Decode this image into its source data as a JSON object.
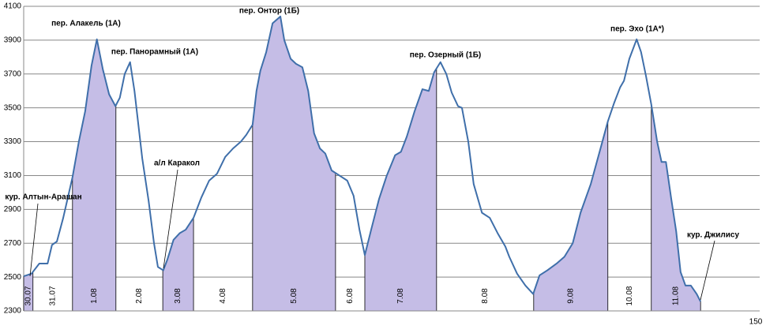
{
  "chart_data": {
    "type": "line",
    "x": [
      0,
      1.6,
      3.2,
      4.9,
      5.8,
      6.8,
      8.1,
      10.0,
      11.3,
      12.6,
      13.9,
      15.0,
      16.2,
      17.5,
      18.8,
      19.7,
      20.7,
      21.8,
      22.7,
      23.5,
      24.3,
      25.6,
      26.7,
      27.5,
      28.6,
      29.4,
      30.7,
      32.0,
      33.2,
      34.8,
      36.4,
      38.0,
      39.6,
      41.3,
      42.9,
      44.5,
      45.6,
      46.9,
      47.7,
      48.5,
      49.7,
      51.0,
      52.6,
      53.4,
      54.7,
      55.8,
      57.1,
      58.3,
      59.5,
      60.7,
      61.8,
      63.1,
      64.7,
      66.3,
      67.6,
      68.8,
      69.9,
      71.2,
      72.8,
      74.4,
      76.1,
      77.3,
      78.5,
      80.1,
      81.7,
      83.0,
      84.1,
      85.4,
      86.6,
      87.7,
      89.0,
      89.8,
      91.1,
      92.2,
      93.9,
      95.5,
      97.1,
      98.7,
      99.5,
      101.1,
      102.8,
      104.4,
      105.7,
      107.3,
      109.2,
      110.8,
      112.5,
      114.1,
      116.2,
      118.1,
      119.7,
      121.0,
      122.2,
      123.0,
      124.1,
      125.6,
      126.5,
      127.5,
      128.6,
      129.8,
      130.7,
      131.6,
      132.7,
      133.7,
      134.6,
      135.6,
      136.7,
      137.9,
      138.7
    ],
    "series": [
      {
        "color": "#3f6faa",
        "fill": "#c5bde6",
        "values": [
          2505,
          2520,
          2580,
          2580,
          2690,
          2710,
          2850,
          3090,
          3300,
          3480,
          3750,
          3905,
          3730,
          3580,
          3510,
          3560,
          3700,
          3770,
          3600,
          3400,
          3200,
          2950,
          2700,
          2560,
          2540,
          2600,
          2720,
          2760,
          2780,
          2850,
          2970,
          3070,
          3110,
          3210,
          3260,
          3300,
          3340,
          3400,
          3600,
          3720,
          3830,
          4000,
          4040,
          3900,
          3790,
          3760,
          3740,
          3600,
          3350,
          3260,
          3230,
          3130,
          3100,
          3070,
          2980,
          2780,
          2630,
          2780,
          2960,
          3100,
          3220,
          3240,
          3330,
          3480,
          3610,
          3600,
          3710,
          3770,
          3700,
          3590,
          3510,
          3500,
          3300,
          3050,
          2880,
          2850,
          2760,
          2680,
          2620,
          2520,
          2450,
          2400,
          2510,
          2540,
          2580,
          2620,
          2700,
          2880,
          3050,
          3250,
          3420,
          3530,
          3620,
          3660,
          3790,
          3905,
          3830,
          3690,
          3520,
          3300,
          3180,
          3180,
          2960,
          2770,
          2530,
          2450,
          2450,
          2400,
          2355
        ]
      }
    ],
    "days": [
      {
        "label": "30.07",
        "start": 0,
        "end": 1.9,
        "shaded": true
      },
      {
        "label": "31.07",
        "start": 1.9,
        "end": 10.0,
        "shaded": false
      },
      {
        "label": "1.08",
        "start": 10.0,
        "end": 18.9,
        "shaded": true
      },
      {
        "label": "2.08",
        "start": 18.9,
        "end": 28.5,
        "shaded": false
      },
      {
        "label": "3.08",
        "start": 28.5,
        "end": 34.8,
        "shaded": true
      },
      {
        "label": "4.08",
        "start": 34.8,
        "end": 46.9,
        "shaded": false
      },
      {
        "label": "5.08",
        "start": 46.9,
        "end": 63.9,
        "shaded": true
      },
      {
        "label": "6.08",
        "start": 63.9,
        "end": 69.9,
        "shaded": false
      },
      {
        "label": "7.08",
        "start": 69.9,
        "end": 84.6,
        "shaded": true
      },
      {
        "label": "8.08",
        "start": 84.6,
        "end": 104.5,
        "shaded": false
      },
      {
        "label": "9.08",
        "start": 104.5,
        "end": 119.7,
        "shaded": true
      },
      {
        "label": "10.08",
        "start": 119.7,
        "end": 128.6,
        "shaded": false
      },
      {
        "label": "11.08",
        "start": 128.6,
        "end": 138.7,
        "shaded": true
      }
    ],
    "annotations": [
      "пер. Алакель (1А)",
      "пер. Панорамный (1А)",
      "пер. Онтор (1Б)",
      "пер. Озерный (1Б)",
      "пер. Эхо (1А*)",
      "а/л Каракол",
      "кур. Алтын-Арашан",
      "кур. Джилису"
    ],
    "xlim": [
      0,
      150
    ],
    "xticks": [
      150
    ],
    "ylim": [
      2300,
      4100
    ],
    "yticks": [
      2300,
      2500,
      2700,
      2900,
      3100,
      3300,
      3500,
      3700,
      3900,
      4100
    ],
    "grid": true
  }
}
